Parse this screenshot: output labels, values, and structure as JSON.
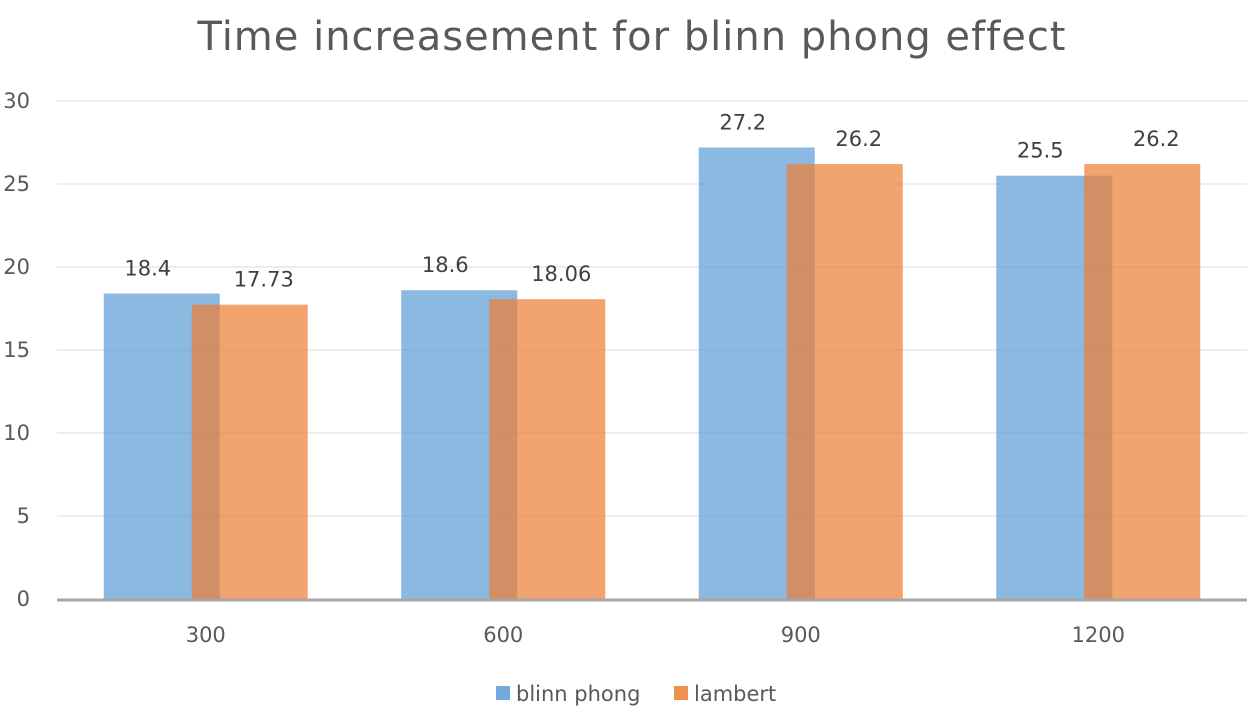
{
  "chart_data": {
    "type": "bar",
    "title": "Time increasement for blinn phong effect",
    "xlabel": "",
    "ylabel": "",
    "categories": [
      "300",
      "600",
      "900",
      "1200"
    ],
    "series": [
      {
        "name": "blinn phong",
        "values": [
          18.4,
          18.6,
          27.2,
          25.5
        ],
        "labels": [
          "18.4",
          "18.6",
          "27.2",
          "25.5"
        ],
        "color": "#5B9BD5"
      },
      {
        "name": "lambert",
        "values": [
          17.73,
          18.06,
          26.2,
          26.2
        ],
        "labels": [
          "17.73",
          "18.06",
          "26.2",
          "26.2"
        ],
        "color": "#ED7D31"
      }
    ],
    "ylim": [
      0,
      30
    ],
    "yticks": [
      "0",
      "5",
      "10",
      "15",
      "20",
      "25",
      "30"
    ],
    "bar_overlap": true,
    "bar_opacity": 0.7,
    "grid": true,
    "legend_position": "bottom"
  },
  "colors": {
    "gridline": "#E7E7E7",
    "axis_line": "#A6A6A6",
    "text": "#595959"
  }
}
